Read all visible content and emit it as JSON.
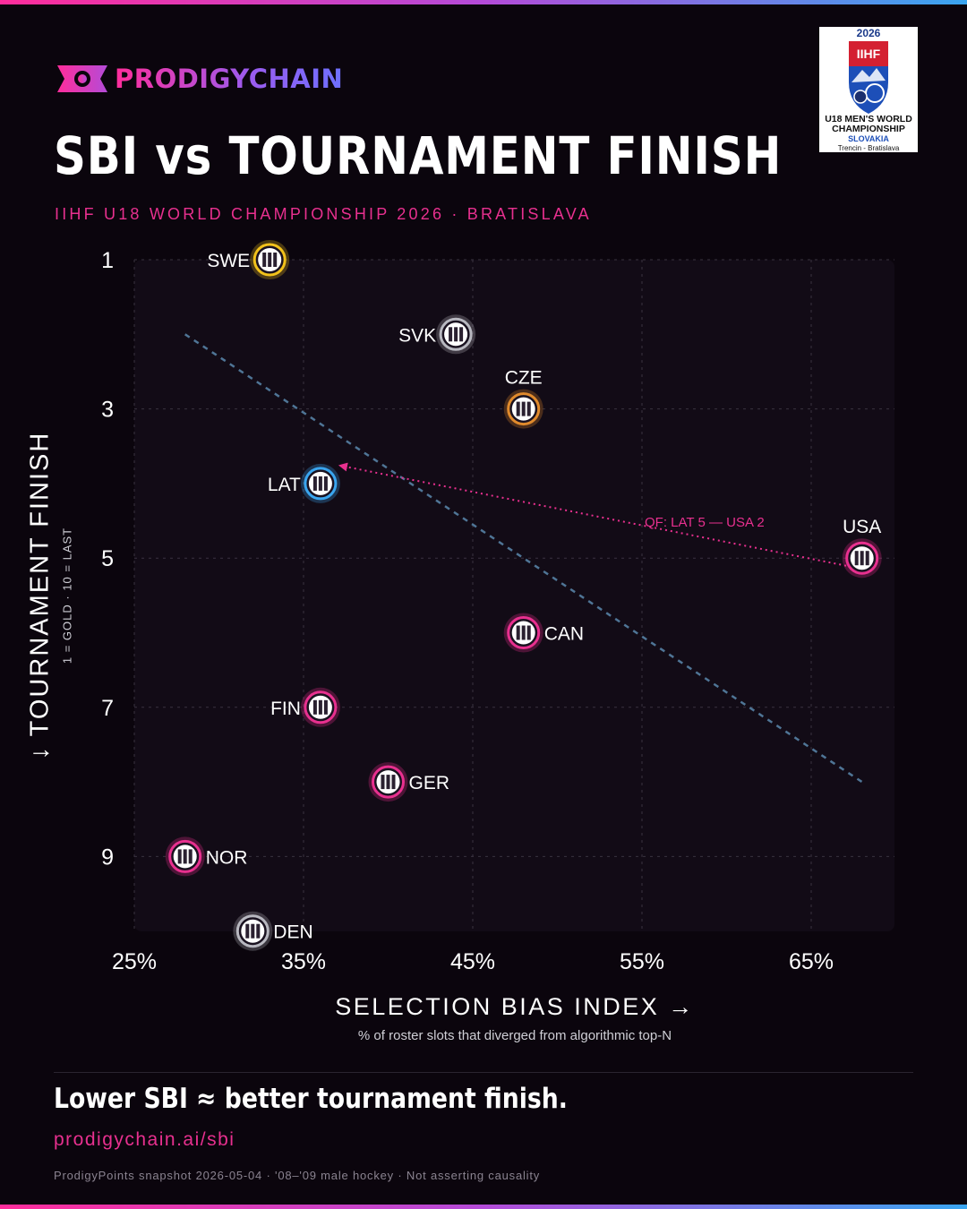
{
  "brand": {
    "name": "PRODIGYCHAIN"
  },
  "header": {
    "title": "SBI vs TOURNAMENT FINISH",
    "subtitle": "IIHF U18 WORLD CHAMPIONSHIP 2026 · BRATISLAVA"
  },
  "badge": {
    "year": "2026",
    "org": "IIHF",
    "line1": "U18 MEN'S WORLD CHAMPIONSHIP",
    "line2": "SLOVAKIA",
    "line3": "Trencin - Bratislava"
  },
  "chart_data": {
    "type": "scatter",
    "title": "SBI vs TOURNAMENT FINISH",
    "xlabel": "SELECTION BIAS INDEX →",
    "xlabel_sub": "% of roster slots that diverged from algorithmic top-N",
    "ylabel": "↓ TOURNAMENT FINISH",
    "ylabel_sub": "1 = GOLD · 10 = LAST",
    "xlim": [
      25,
      70
    ],
    "ylim": [
      1,
      10
    ],
    "y_inverted": true,
    "grid": true,
    "x_ticks": [
      "25%",
      "35%",
      "45%",
      "55%",
      "65%"
    ],
    "x_tick_values": [
      25,
      35,
      45,
      55,
      65
    ],
    "y_ticks": [
      "1",
      "3",
      "5",
      "7",
      "9"
    ],
    "y_tick_values": [
      1,
      3,
      5,
      7,
      9
    ],
    "points": [
      {
        "team": "SWE",
        "sbi": 33,
        "finish": 1,
        "color": "#f2c21b",
        "label_side": "left"
      },
      {
        "team": "SVK",
        "sbi": 44,
        "finish": 2,
        "color": "#b8b8c0",
        "label_side": "left"
      },
      {
        "team": "CZE",
        "sbi": 48,
        "finish": 3,
        "color": "#e08a2c",
        "label_side": "above"
      },
      {
        "team": "LAT",
        "sbi": 36,
        "finish": 4,
        "color": "#3aa6f0",
        "label_side": "left"
      },
      {
        "team": "USA",
        "sbi": 68,
        "finish": 5,
        "color": "#e8308f",
        "label_side": "above"
      },
      {
        "team": "CAN",
        "sbi": 48,
        "finish": 6,
        "color": "#e8308f",
        "label_side": "right"
      },
      {
        "team": "FIN",
        "sbi": 36,
        "finish": 7,
        "color": "#e8308f",
        "label_side": "left"
      },
      {
        "team": "GER",
        "sbi": 40,
        "finish": 8,
        "color": "#e8308f",
        "label_side": "right"
      },
      {
        "team": "NOR",
        "sbi": 28,
        "finish": 9,
        "color": "#e8308f",
        "label_side": "right"
      },
      {
        "team": "DEN",
        "sbi": 32,
        "finish": 10,
        "color": "#b8b8c0",
        "label_side": "right"
      }
    ],
    "trendline": {
      "from": [
        28,
        2
      ],
      "to": [
        68,
        8
      ],
      "color": "#4f7596"
    },
    "annotation": {
      "text": "QF: LAT 5 — USA 2",
      "from_team": "USA",
      "to_team": "LAT",
      "color": "#e8308f"
    }
  },
  "footer": {
    "takeaway": "Lower SBI ≈ better tournament finish.",
    "url": "prodigychain.ai/sbi",
    "note": "ProdigyPoints snapshot 2026-05-04 · '08–'09 male hockey · Not asserting causality"
  },
  "colors": {
    "background": "#0b050d",
    "accent": "#e8308f",
    "trend": "#4f7596"
  }
}
